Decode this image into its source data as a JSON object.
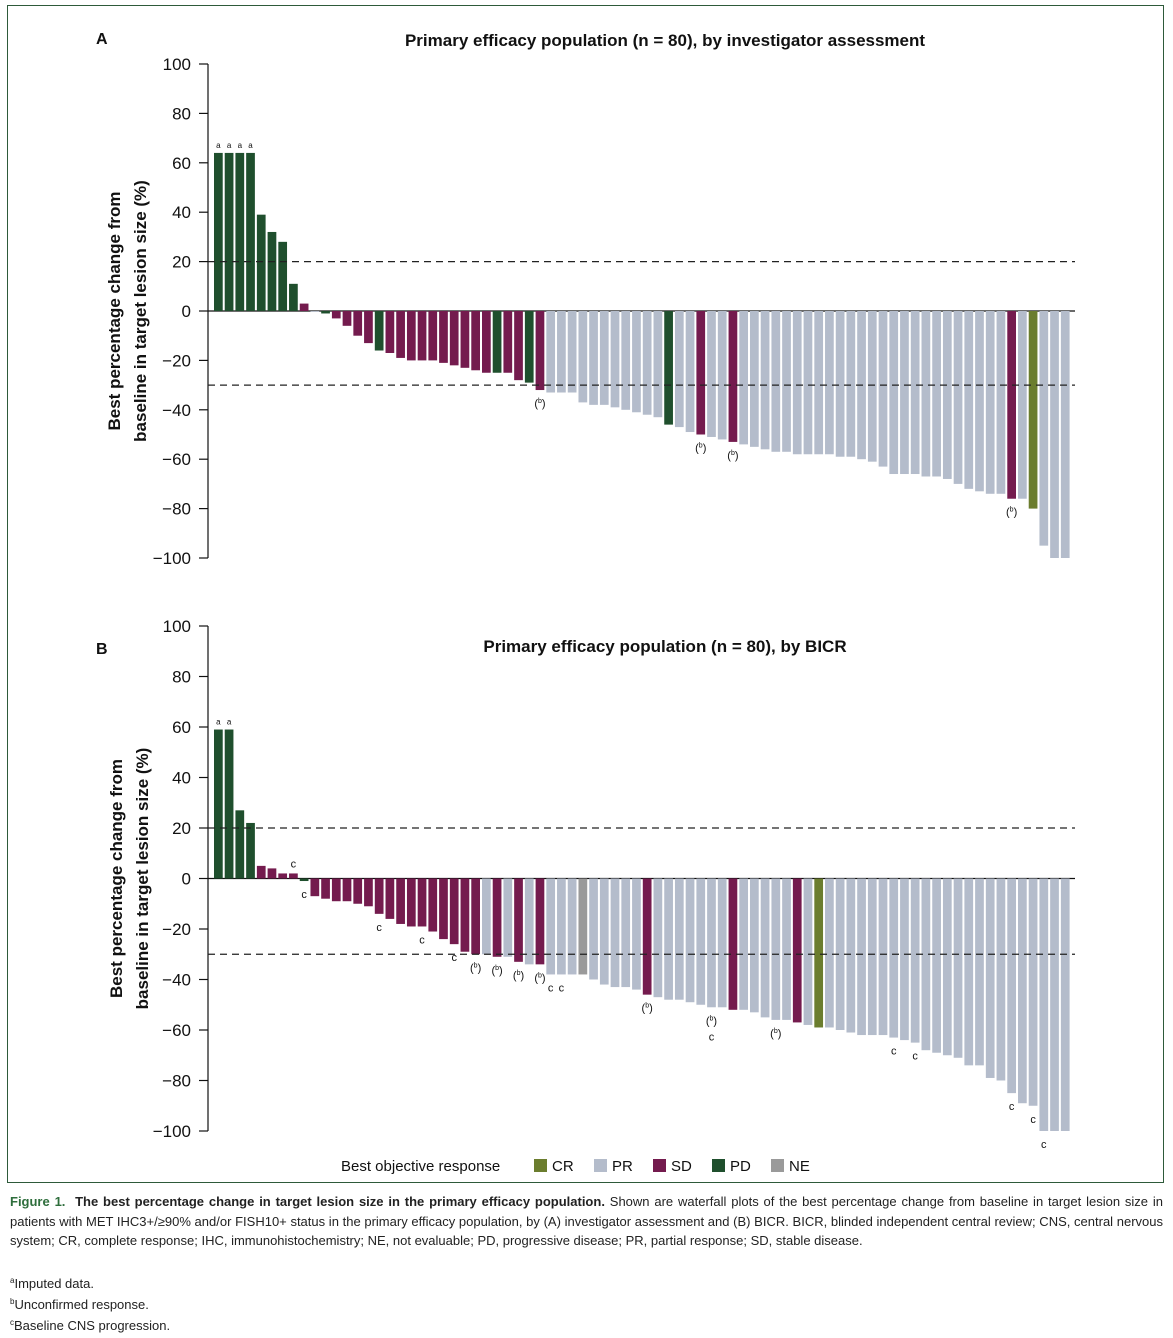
{
  "colors": {
    "CR": "#6b7d2e",
    "PR": "#b4bccb",
    "SD": "#741b4e",
    "PD": "#1f4f2d",
    "NE": "#9a9a9a"
  },
  "legend": {
    "title": "Best objective response",
    "items": [
      "CR",
      "PR",
      "SD",
      "PD",
      "NE"
    ]
  },
  "caption": {
    "figure_label": "Figure 1.",
    "title": "The best percentage change in target lesion size in the primary efficacy population.",
    "body": "Shown are waterfall plots of the best percentage change from baseline in target lesion size in patients with MET IHC3+/≥90% and/or FISH10+ status in the primary efficacy population, by (A) investigator assessment and (B) BICR. BICR, blinded independent central review; CNS, central nervous system; CR, complete response; IHC, immunohistochemistry; NE, not evaluable; PD, progressive disease; PR, partial response; SD, stable disease."
  },
  "footnotes": [
    {
      "mark": "a",
      "text": "Imputed data."
    },
    {
      "mark": "b",
      "text": "Unconfirmed response."
    },
    {
      "mark": "c",
      "text": "Baseline CNS progression."
    }
  ],
  "chart_data": [
    {
      "type": "bar",
      "panel_label": "A",
      "title": "Primary efficacy population (n = 80), by investigator assessment",
      "ylabel_lines": [
        "Best percentage change from",
        "baseline in target lesion size (%)"
      ],
      "ylim": [
        -100,
        100
      ],
      "yticks": [
        100,
        80,
        60,
        40,
        20,
        0,
        -20,
        -40,
        -60,
        -80,
        -100
      ],
      "ytick_labels": [
        "100",
        "80",
        "60",
        "40",
        "20",
        "0",
        "−20",
        "−40",
        "−60",
        "−80",
        "−100"
      ],
      "reference_lines": [
        20,
        -30
      ],
      "values": [
        64,
        64,
        64,
        64,
        39,
        32,
        28,
        11,
        3,
        0,
        -1,
        -3,
        -6,
        -10,
        -13,
        -16,
        -17,
        -19,
        -20,
        -20,
        -20,
        -21,
        -22,
        -23,
        -24,
        -25,
        -25,
        -25,
        -28,
        -29,
        -32,
        -33,
        -33,
        -33,
        -37,
        -38,
        -38,
        -39,
        -40,
        -41,
        -42,
        -43,
        -46,
        -47,
        -49,
        -50,
        -51,
        -52,
        -53,
        -54,
        -55,
        -56,
        -57,
        -57,
        -58,
        -58,
        -58,
        -58,
        -59,
        -59,
        -60,
        -61,
        -63,
        -66,
        -66,
        -66,
        -67,
        -67,
        -68,
        -70,
        -72,
        -73,
        -74,
        -74,
        -76,
        -76,
        -80,
        -95,
        -100,
        -100
      ],
      "responses": [
        "PD",
        "PD",
        "PD",
        "PD",
        "PD",
        "PD",
        "PD",
        "PD",
        "SD",
        "PR",
        "PD",
        "SD",
        "SD",
        "SD",
        "SD",
        "PD",
        "SD",
        "SD",
        "SD",
        "SD",
        "SD",
        "SD",
        "SD",
        "SD",
        "SD",
        "SD",
        "PD",
        "SD",
        "SD",
        "PD",
        "SD",
        "PR",
        "PR",
        "PR",
        "PR",
        "PR",
        "PR",
        "PR",
        "PR",
        "PR",
        "PR",
        "PR",
        "PD",
        "PR",
        "PR",
        "SD",
        "PR",
        "PR",
        "SD",
        "PR",
        "PR",
        "PR",
        "PR",
        "PR",
        "PR",
        "PR",
        "PR",
        "PR",
        "PR",
        "PR",
        "PR",
        "PR",
        "PR",
        "PR",
        "PR",
        "PR",
        "PR",
        "PR",
        "PR",
        "PR",
        "PR",
        "PR",
        "PR",
        "PR",
        "SD",
        "PR",
        "CR",
        "PR",
        "PR",
        "PR"
      ],
      "annotations": [
        {
          "index": 0,
          "text": "a"
        },
        {
          "index": 1,
          "text": "a"
        },
        {
          "index": 2,
          "text": "a"
        },
        {
          "index": 3,
          "text": "a"
        },
        {
          "index": 30,
          "text": "(b)"
        },
        {
          "index": 45,
          "text": "(b)"
        },
        {
          "index": 48,
          "text": "(b)"
        },
        {
          "index": 74,
          "text": "(b)"
        }
      ]
    },
    {
      "type": "bar",
      "panel_label": "B",
      "title": "Primary efficacy population (n = 80), by BICR",
      "ylabel_lines": [
        "Best percentage change from",
        "baseline in target lesion size (%)"
      ],
      "ylim": [
        -100,
        100
      ],
      "yticks": [
        100,
        80,
        60,
        40,
        20,
        0,
        -20,
        -40,
        -60,
        -80,
        -100
      ],
      "ytick_labels": [
        "100",
        "80",
        "60",
        "40",
        "20",
        "0",
        "−20",
        "−40",
        "−60",
        "−80",
        "−100"
      ],
      "reference_lines": [
        20,
        -30
      ],
      "values": [
        59,
        59,
        27,
        22,
        5,
        4,
        2,
        2,
        -1,
        -7,
        -8,
        -9,
        -9,
        -10,
        -11,
        -14,
        -16,
        -18,
        -19,
        -19,
        -21,
        -24,
        -26,
        -29,
        -30,
        -30,
        -31,
        -31,
        -33,
        -34,
        -34,
        -38,
        -38,
        -38,
        -38,
        -40,
        -42,
        -43,
        -43,
        -44,
        -46,
        -47,
        -48,
        -48,
        -49,
        -50,
        -51,
        -51,
        -52,
        -52,
        -53,
        -55,
        -56,
        -56,
        -57,
        -58,
        -59,
        -59,
        -60,
        -61,
        -62,
        -62,
        -62,
        -63,
        -64,
        -65,
        -68,
        -69,
        -70,
        -71,
        -74,
        -74,
        -79,
        -80,
        -85,
        -89,
        -90,
        -100,
        -100,
        -100
      ],
      "responses": [
        "PD",
        "PD",
        "PD",
        "PD",
        "SD",
        "SD",
        "SD",
        "SD",
        "PD",
        "SD",
        "SD",
        "SD",
        "SD",
        "SD",
        "SD",
        "SD",
        "SD",
        "SD",
        "SD",
        "SD",
        "SD",
        "SD",
        "SD",
        "SD",
        "SD",
        "PR",
        "SD",
        "PR",
        "SD",
        "PR",
        "SD",
        "PR",
        "PR",
        "PR",
        "NE",
        "PR",
        "PR",
        "PR",
        "PR",
        "PR",
        "SD",
        "PR",
        "PR",
        "PR",
        "PR",
        "PR",
        "PR",
        "PR",
        "SD",
        "PR",
        "PR",
        "PR",
        "PR",
        "PR",
        "SD",
        "PR",
        "CR",
        "PR",
        "PR",
        "PR",
        "PR",
        "PR",
        "PR",
        "PR",
        "PR",
        "PR",
        "PR",
        "PR",
        "PR",
        "PR",
        "PR",
        "PR",
        "PR",
        "PR",
        "PR",
        "PR",
        "PR",
        "PR",
        "PR",
        "PR"
      ],
      "annotations": [
        {
          "index": 0,
          "text": "a"
        },
        {
          "index": 1,
          "text": "a"
        },
        {
          "index": 7,
          "text": "c"
        },
        {
          "index": 8,
          "text": "c"
        },
        {
          "index": 15,
          "text": "c"
        },
        {
          "index": 19,
          "text": "c"
        },
        {
          "index": 22,
          "text": "c"
        },
        {
          "index": 24,
          "text": "(b)"
        },
        {
          "index": 26,
          "text": "(b)"
        },
        {
          "index": 28,
          "text": "(b)"
        },
        {
          "index": 30,
          "text": "(b)"
        },
        {
          "index": 31,
          "text": "c"
        },
        {
          "index": 32,
          "text": "c"
        },
        {
          "index": 40,
          "text": "(b)"
        },
        {
          "index": 46,
          "text": "(b)"
        },
        {
          "index": 46,
          "text": "c"
        },
        {
          "index": 52,
          "text": "(b)"
        },
        {
          "index": 63,
          "text": "c"
        },
        {
          "index": 65,
          "text": "c"
        },
        {
          "index": 74,
          "text": "c"
        },
        {
          "index": 76,
          "text": "c"
        },
        {
          "index": 77,
          "text": "c"
        }
      ]
    }
  ]
}
